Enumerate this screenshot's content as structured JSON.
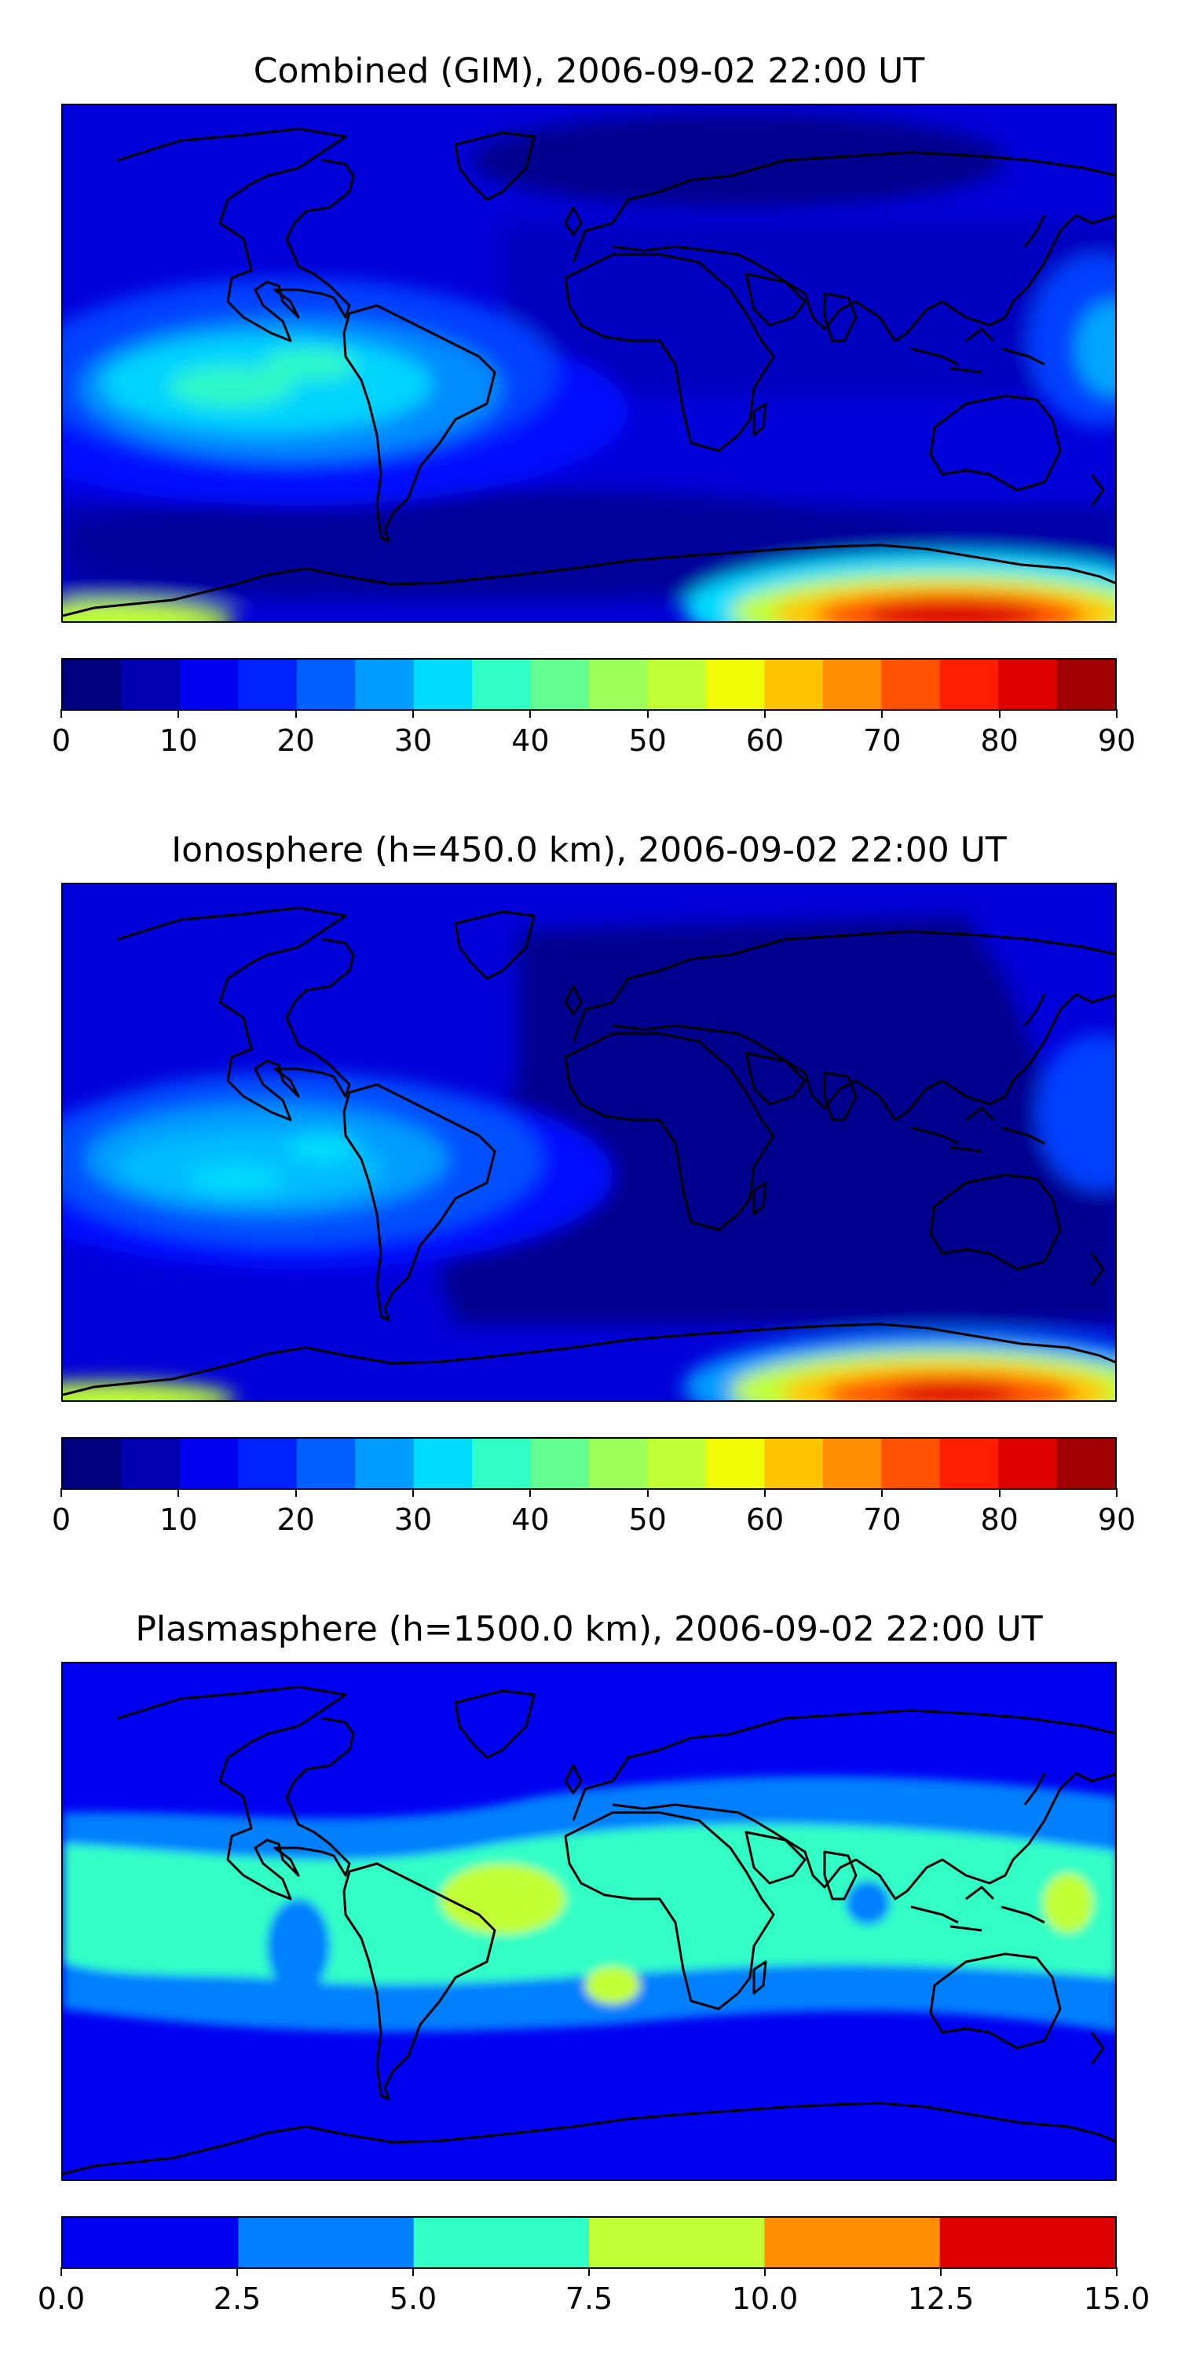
{
  "panels": [
    {
      "title": "Combined (GIM), 2006-09-02 22:00 UT",
      "colorbar": {
        "min": 0,
        "max": 90,
        "tick_labels": [
          "0",
          "10",
          "20",
          "30",
          "40",
          "50",
          "60",
          "70",
          "80",
          "90"
        ],
        "colors": [
          "#00007f",
          "#0000b2",
          "#0000f1",
          "#0022ff",
          "#0060ff",
          "#009cff",
          "#00dcfe",
          "#30ffc6",
          "#63ff93",
          "#9cff5a",
          "#c1ff36",
          "#f1fc06",
          "#ffc400",
          "#ff8e00",
          "#ff5200",
          "#ff1e00",
          "#dd0000",
          "#a20000"
        ]
      }
    },
    {
      "title": "Ionosphere  (h=450.0 km), 2006-09-02 22:00 UT",
      "colorbar": {
        "min": 0,
        "max": 90,
        "tick_labels": [
          "0",
          "10",
          "20",
          "30",
          "40",
          "50",
          "60",
          "70",
          "80",
          "90"
        ],
        "colors": [
          "#00007f",
          "#0000b2",
          "#0000f1",
          "#0022ff",
          "#0060ff",
          "#009cff",
          "#00dcfe",
          "#30ffc6",
          "#63ff93",
          "#9cff5a",
          "#c1ff36",
          "#f1fc06",
          "#ffc400",
          "#ff8e00",
          "#ff5200",
          "#ff1e00",
          "#dd0000",
          "#a20000"
        ]
      }
    },
    {
      "title": "Plasmasphere (h=1500.0 km), 2006-09-02 22:00 UT",
      "colorbar": {
        "min": 0.0,
        "max": 15.0,
        "tick_labels": [
          "0.0",
          "2.5",
          "5.0",
          "7.5",
          "10.0",
          "12.5",
          "15.0"
        ],
        "colors": [
          "#0000f1",
          "#007fff",
          "#30ffc6",
          "#c1ff36",
          "#ff8e00",
          "#dd0000"
        ]
      }
    }
  ]
}
